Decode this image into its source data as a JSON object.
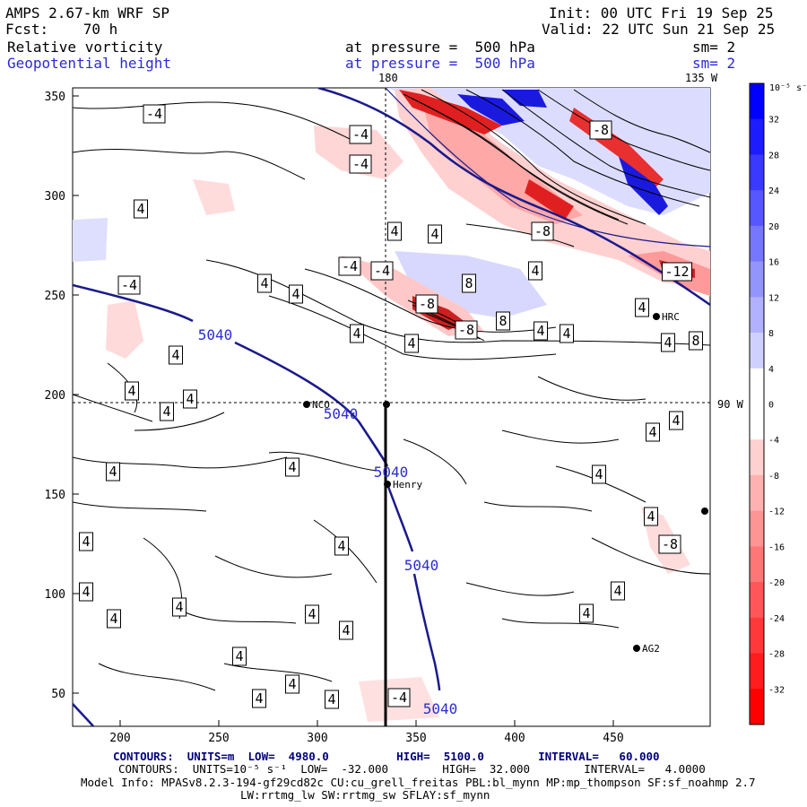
{
  "header": {
    "model": "AMPS 2.67-km WRF SP",
    "forecast": "Fcst:    70 h",
    "init": "Init: 00 UTC Fri 19 Sep 25",
    "valid": "Valid: 22 UTC Sun 21 Sep 25",
    "field1_name": "Relative vorticity",
    "field1_level": "at pressure =  500 hPa",
    "field1_sm": "sm= 2",
    "field2_name": "Geopotential height",
    "field2_level": "at pressure =  500 hPa",
    "field2_sm": "sm= 2"
  },
  "plot": {
    "x_ticks": [
      "200",
      "250",
      "300",
      "350",
      "400",
      "450"
    ],
    "y_ticks": [
      "350",
      "300",
      "250",
      "200",
      "150",
      "100",
      "50"
    ],
    "lon_top_label": "180",
    "lat_top_label": "135 W",
    "lat_right_label": "90 W",
    "height_contour_label": "5040",
    "stations": [
      {
        "name": "NCO"
      },
      {
        "name": "Henry"
      },
      {
        "name": "HRC"
      },
      {
        "name": "AG2"
      }
    ],
    "vort_labels_pos": [
      "4",
      "8"
    ],
    "vort_labels_neg": [
      "-4",
      "-8",
      "-12"
    ]
  },
  "colorbar": {
    "unit": "10⁻⁵ s⁻¹",
    "ticks": [
      "32",
      "28",
      "24",
      "20",
      "16",
      "12",
      "8",
      "4",
      "0",
      "-4",
      "-8",
      "-12",
      "-16",
      "-20",
      "-24",
      "-28",
      "-32"
    ],
    "colors": [
      "#0000ff",
      "#1c1cff",
      "#3939ff",
      "#5757ff",
      "#7676ff",
      "#9494ff",
      "#b1b1ff",
      "#d0d0ff",
      "#ffffff",
      "#ffffff",
      "#ffd0d0",
      "#ffb1b1",
      "#ff9494",
      "#ff7676",
      "#ff5757",
      "#ff3939",
      "#ff1c1c",
      "#ff0000"
    ]
  },
  "footer": {
    "line1": "CONTOURS:  UNITS=m  LOW=  4980.0          HIGH=  5100.0        INTERVAL=   60.000",
    "line2": "CONTOURS:  UNITS=10⁻⁵ s⁻¹  LOW=  -32.000        HIGH=  32.000        INTERVAL=   4.0000",
    "line3": "Model Info: MPASv8.2.3-194-gf29cd82c CU:cu_grell_freitas PBL:bl_mynn MP:mp_thompson SF:sf_noahmp 2.7",
    "line4": "LW:rrtmg_lw SW:rrtmg_sw SFLAY:sf_mynn"
  },
  "colors": {
    "height_contour": "#1a1a8c",
    "vort_line": "#000000",
    "dashed_line": "#000000"
  }
}
